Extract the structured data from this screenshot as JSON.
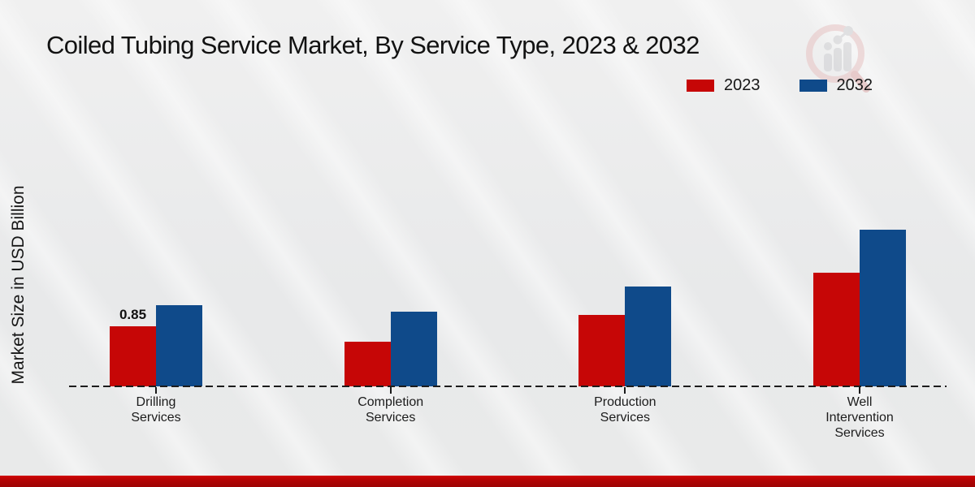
{
  "colors": {
    "series_2023": "#c60606",
    "series_2032": "#0f4a8a",
    "footer_strip": "#b00404",
    "background": "#e9eaea",
    "text": "#111111"
  },
  "branding": {
    "logo_icon": "magnifier-bar-chart-watermark"
  },
  "chart_data": {
    "type": "bar",
    "title": "Coiled Tubing Service Market, By Service Type, 2023 & 2032",
    "ylabel": "Market Size in USD Billion",
    "xlabel": "",
    "categories": [
      "Drilling\nServices",
      "Completion\nServices",
      "Production\nServices",
      "Well\nIntervention\nServices"
    ],
    "series": [
      {
        "name": "2023",
        "color": "#c60606",
        "values": [
          0.85,
          0.63,
          1.01,
          1.61
        ],
        "value_labels": [
          "0.85",
          "",
          "",
          ""
        ]
      },
      {
        "name": "2032",
        "color": "#0f4a8a",
        "values": [
          1.15,
          1.06,
          1.41,
          2.22
        ],
        "value_labels": [
          "",
          "",
          "",
          ""
        ]
      }
    ],
    "ylim": [
      0,
      2.4
    ],
    "units": "USD Billion",
    "baseline_style": "dashed",
    "grid": "off",
    "legend_position": "top-right"
  }
}
